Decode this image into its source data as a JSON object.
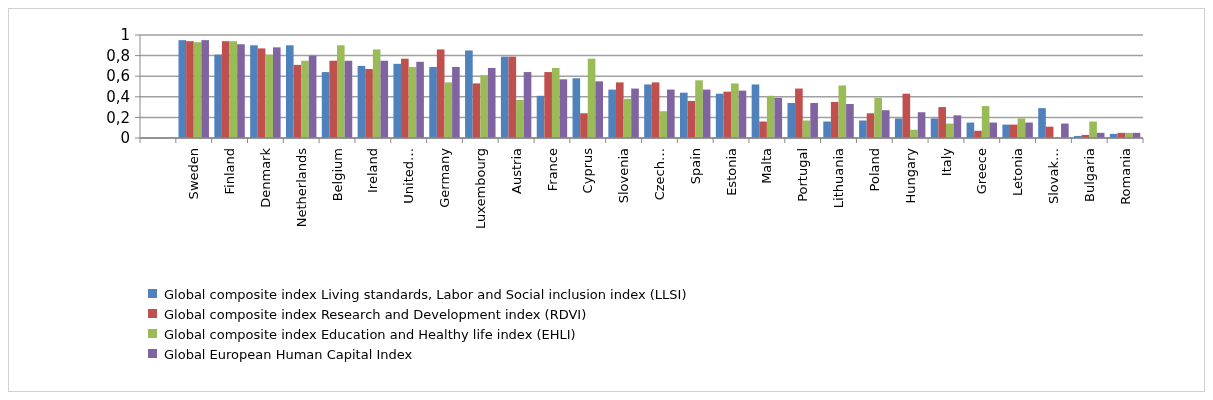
{
  "chart_data": {
    "type": "bar",
    "categories": [
      null,
      "Sweden",
      "Finland",
      "Denmark",
      "Netherlands",
      "Belgium",
      "Ireland",
      "United…",
      "Germany",
      "Luxembourg",
      "Austria",
      "France",
      "Cyprus",
      "Slovenia",
      "Czech…",
      "Spain",
      "Estonia",
      "Malta",
      "Portugal",
      "Lithuania",
      "Poland",
      "Hungary",
      "Italy",
      "Greece",
      "Letonia",
      "Slovak…",
      "Bulgaria",
      "Romania"
    ],
    "series": [
      {
        "name": "Global composite index Living standards, Labor and Social inclusion index (LLSI)",
        "color": "#4f81bd",
        "values": [
          null,
          0.95,
          0.81,
          0.9,
          0.9,
          0.64,
          0.7,
          0.72,
          0.69,
          0.85,
          0.79,
          0.41,
          0.58,
          0.47,
          0.52,
          0.44,
          0.43,
          0.52,
          0.34,
          0.16,
          0.17,
          0.19,
          0.19,
          0.15,
          0.13,
          0.29,
          0.02,
          0.04
        ]
      },
      {
        "name": "Global composite index Research and Development index (RDVI)",
        "color": "#c0504d",
        "values": [
          null,
          0.94,
          0.94,
          0.87,
          0.71,
          0.75,
          0.67,
          0.77,
          0.86,
          0.53,
          0.79,
          0.64,
          0.24,
          0.54,
          0.54,
          0.36,
          0.45,
          0.16,
          0.48,
          0.35,
          0.24,
          0.43,
          0.3,
          0.07,
          0.13,
          0.11,
          0.03,
          0.05
        ]
      },
      {
        "name": "Global composite index Education and Healthy life index (EHLI)",
        "color": "#9bbb59",
        "values": [
          null,
          0.93,
          0.94,
          0.81,
          0.75,
          0.9,
          0.86,
          0.69,
          0.54,
          0.61,
          0.37,
          0.68,
          0.77,
          0.38,
          0.26,
          0.56,
          0.53,
          0.41,
          0.17,
          0.51,
          0.39,
          0.08,
          0.14,
          0.31,
          0.19,
          0,
          0.16,
          0.05
        ]
      },
      {
        "name": "Global European Human Capital Index",
        "color": "#8064a2",
        "values": [
          null,
          0.95,
          0.91,
          0.88,
          0.8,
          0.75,
          0.75,
          0.74,
          0.69,
          0.68,
          0.64,
          0.57,
          0.55,
          0.48,
          0.47,
          0.47,
          0.46,
          0.39,
          0.34,
          0.33,
          0.27,
          0.25,
          0.22,
          0.15,
          0.15,
          0.14,
          0.05,
          0.05
        ]
      }
    ],
    "ylim": [
      0,
      1
    ],
    "yticks": [
      0,
      {
        "value": 0.2,
        "label": "0,2"
      },
      {
        "value": 0.4,
        "label": "0,4"
      },
      {
        "value": 0.6,
        "label": "0,6"
      },
      {
        "value": 0.8,
        "label": "0,8"
      },
      1
    ],
    "grid": "y",
    "legend": "bottom"
  }
}
